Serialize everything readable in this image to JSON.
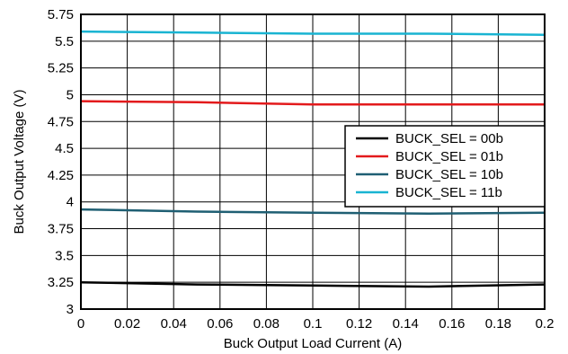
{
  "chart_data": {
    "type": "line",
    "title": "",
    "xlabel": "Buck Output Load Current (A)",
    "ylabel": "Buck Output Voltage (V)",
    "xlim": [
      0,
      0.2
    ],
    "ylim": [
      3,
      5.75
    ],
    "grid": true,
    "legend_position": "right",
    "x_ticks": [
      "0",
      "0.02",
      "0.04",
      "0.06",
      "0.08",
      "0.1",
      "0.12",
      "0.14",
      "0.16",
      "0.18",
      "0.2"
    ],
    "y_ticks": [
      "3",
      "3.25",
      "3.5",
      "3.75",
      "4",
      "4.25",
      "4.5",
      "4.75",
      "5",
      "5.25",
      "5.5",
      "5.75"
    ],
    "series": [
      {
        "name": "BUCK_SEL = 00b",
        "color": "#000000",
        "x": [
          0,
          0.05,
          0.1,
          0.15,
          0.2
        ],
        "y": [
          3.25,
          3.23,
          3.22,
          3.21,
          3.23
        ]
      },
      {
        "name": "BUCK_SEL = 01b",
        "color": "#e31a1c",
        "x": [
          0,
          0.05,
          0.1,
          0.15,
          0.2
        ],
        "y": [
          4.94,
          4.93,
          4.91,
          4.91,
          4.91
        ]
      },
      {
        "name": "BUCK_SEL = 10b",
        "color": "#1f5f73",
        "x": [
          0,
          0.05,
          0.1,
          0.15,
          0.2
        ],
        "y": [
          3.93,
          3.91,
          3.9,
          3.89,
          3.9
        ]
      },
      {
        "name": "BUCK_SEL = 11b",
        "color": "#19b4d2",
        "x": [
          0,
          0.05,
          0.1,
          0.15,
          0.2
        ],
        "y": [
          5.59,
          5.58,
          5.57,
          5.57,
          5.56
        ]
      }
    ]
  }
}
